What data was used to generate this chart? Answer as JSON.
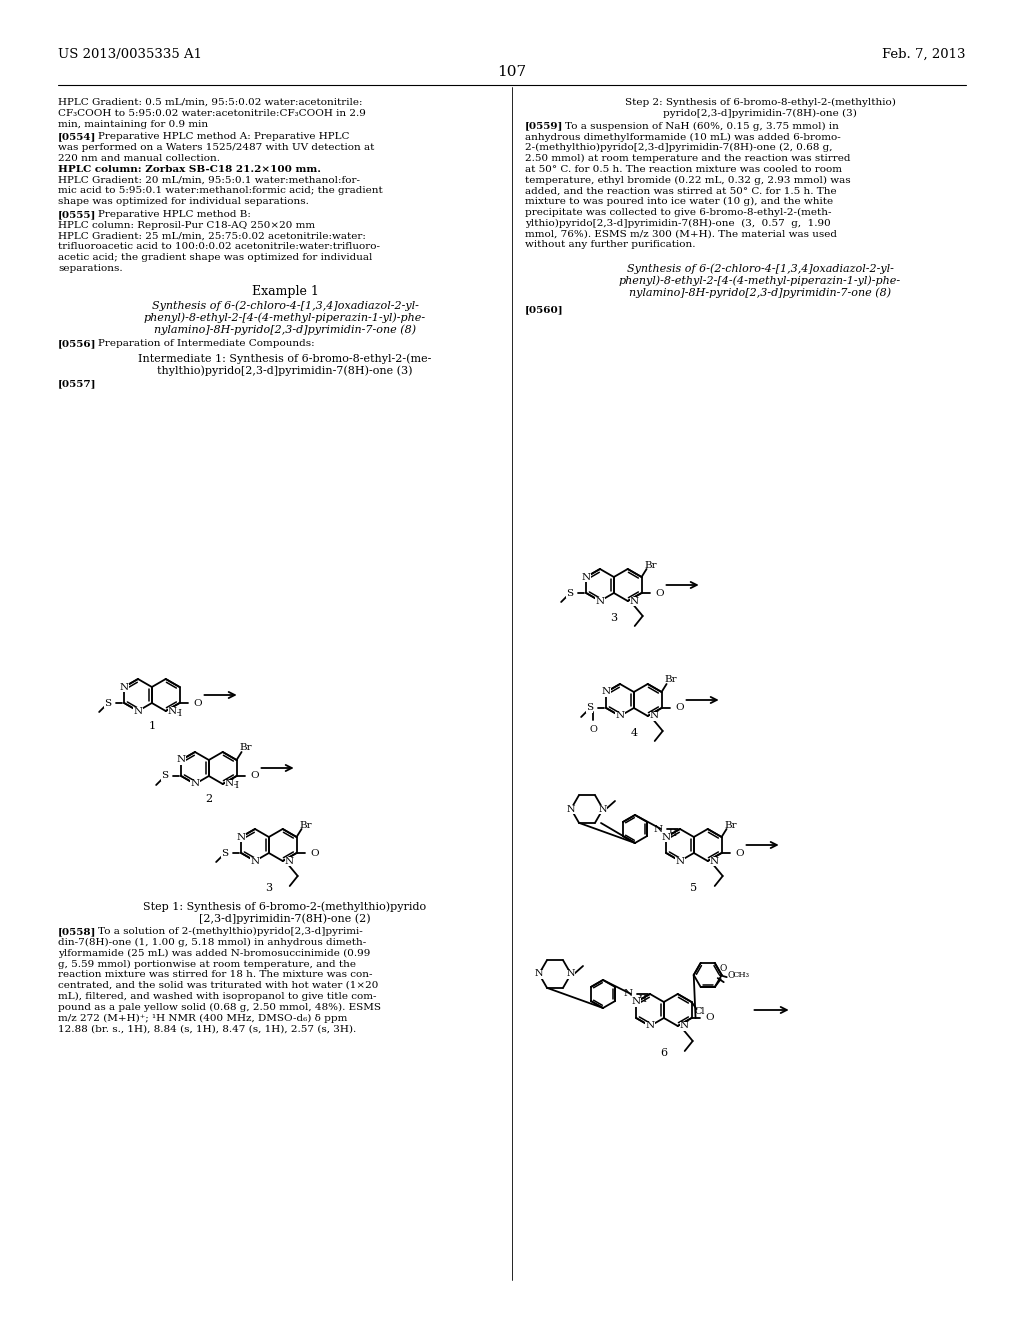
{
  "page_number": "107",
  "patent_number": "US 2013/0035335 A1",
  "date": "Feb. 7, 2013",
  "bg": "#ffffff",
  "left_lines": [
    "HPLC Gradient: 0.5 mL/min, 95:5:0.02 water:acetonitrile:",
    "CF₃COOH to 5:95:0.02 water:acetonitrile:CF₃COOH in 2.9",
    "min, maintaining for 0.9 min"
  ],
  "right_top_line1": "Step 2: Synthesis of 6-bromo-8-ethyl-2-(methylthio)",
  "right_top_line2": "pyrido[2,3-d]pyrimidin-7(8H)-one (3)"
}
